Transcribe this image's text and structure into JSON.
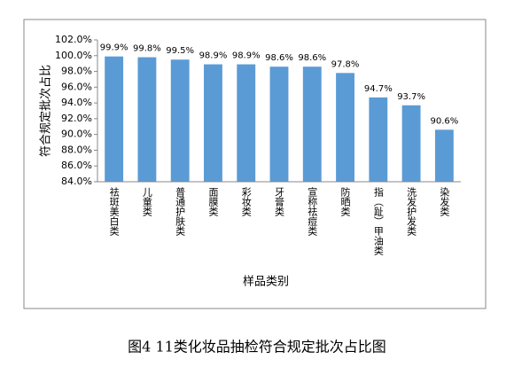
{
  "chart_data": {
    "type": "bar",
    "categories": [
      "祛斑美白类",
      "儿童类",
      "普通护肤类",
      "面膜类",
      "彩妆类",
      "牙膏类",
      "宣称祛痘类",
      "防晒类",
      "指（趾）甲油类",
      "洗发护发类",
      "染发类"
    ],
    "values": [
      99.9,
      99.8,
      99.5,
      98.9,
      98.9,
      98.6,
      98.6,
      97.8,
      94.7,
      93.7,
      90.6
    ],
    "value_labels": [
      "99.9%",
      "99.8%",
      "99.5%",
      "98.9%",
      "98.9%",
      "98.6%",
      "98.6%",
      "97.8%",
      "94.7%",
      "93.7%",
      "90.6%"
    ],
    "color": "#5b9bd5",
    "ylim": [
      84,
      102
    ],
    "yticks": [
      {
        "value": 84,
        "label": "84.0%"
      },
      {
        "value": 86,
        "label": "86.0%"
      },
      {
        "value": 88,
        "label": "88.0%"
      },
      {
        "value": 90,
        "label": "90.0%"
      },
      {
        "value": 92,
        "label": "92.0%"
      },
      {
        "value": 94,
        "label": "94.0%"
      },
      {
        "value": 96,
        "label": "96.0%"
      },
      {
        "value": 98,
        "label": "98.0%"
      },
      {
        "value": 100,
        "label": "100.0%"
      },
      {
        "value": 102,
        "label": "102.0%"
      }
    ],
    "y_label": "符合规定批次占比",
    "x_label": "样品类别",
    "caption": "图4  11类化妆品抽检符合规定批次占比图"
  }
}
